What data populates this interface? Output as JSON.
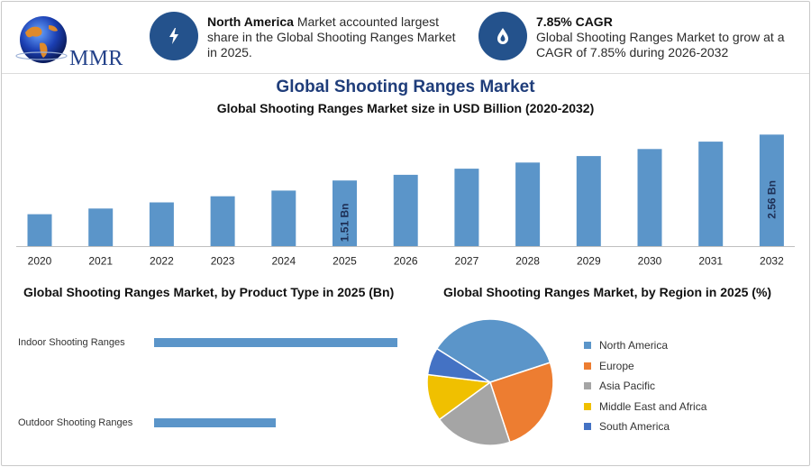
{
  "logo": {
    "text": "MMR"
  },
  "info1": {
    "bold": "North America",
    "text": " Market accounted largest share in the Global Shooting Ranges Market in 2025.",
    "icon": "lightning-icon"
  },
  "info2": {
    "bold": "7.85% CAGR",
    "text": "Global Shooting Ranges Market to grow at a CAGR of 7.85% during 2026-2032",
    "icon": "flame-drop-icon"
  },
  "colors": {
    "accent": "#24528c",
    "bar": "#5b95c9",
    "title": "#1f3d7a"
  },
  "chart_data": [
    {
      "type": "bar",
      "title": "Global Shooting Ranges Market",
      "subtitle": "Global Shooting Ranges Market size in USD Billion (2020-2032)",
      "categories": [
        "2020",
        "2021",
        "2022",
        "2023",
        "2024",
        "2025",
        "2026",
        "2027",
        "2028",
        "2029",
        "2030",
        "2031",
        "2032"
      ],
      "values": [
        0.74,
        0.87,
        1.01,
        1.15,
        1.28,
        1.51,
        1.64,
        1.78,
        1.92,
        2.07,
        2.23,
        2.4,
        2.56
      ],
      "data_labels": [
        {
          "category": "2025",
          "text": "1.51 Bn"
        },
        {
          "category": "2032",
          "text": "2.56 Bn"
        }
      ],
      "ylim": [
        0,
        2.7
      ],
      "color": "#5b95c9"
    },
    {
      "type": "bar",
      "orientation": "horizontal",
      "title": "Global Shooting Ranges Market, by Product Type in 2025 (Bn)",
      "categories": [
        "Indoor Shooting Ranges",
        "Outdoor Shooting Ranges"
      ],
      "values": [
        1.0,
        0.5
      ],
      "color": "#5b95c9"
    },
    {
      "type": "pie",
      "title": "Global Shooting Ranges Market, by Region in 2025 (%)",
      "categories": [
        "North America",
        "Europe",
        "Asia Pacific",
        "Middle East and Africa",
        "South America"
      ],
      "values": [
        36,
        25,
        20,
        12,
        7
      ],
      "colors": [
        "#5b95c9",
        "#ed7d31",
        "#a5a5a5",
        "#f0c000",
        "#4472c4"
      ],
      "legend_position": "right"
    }
  ]
}
